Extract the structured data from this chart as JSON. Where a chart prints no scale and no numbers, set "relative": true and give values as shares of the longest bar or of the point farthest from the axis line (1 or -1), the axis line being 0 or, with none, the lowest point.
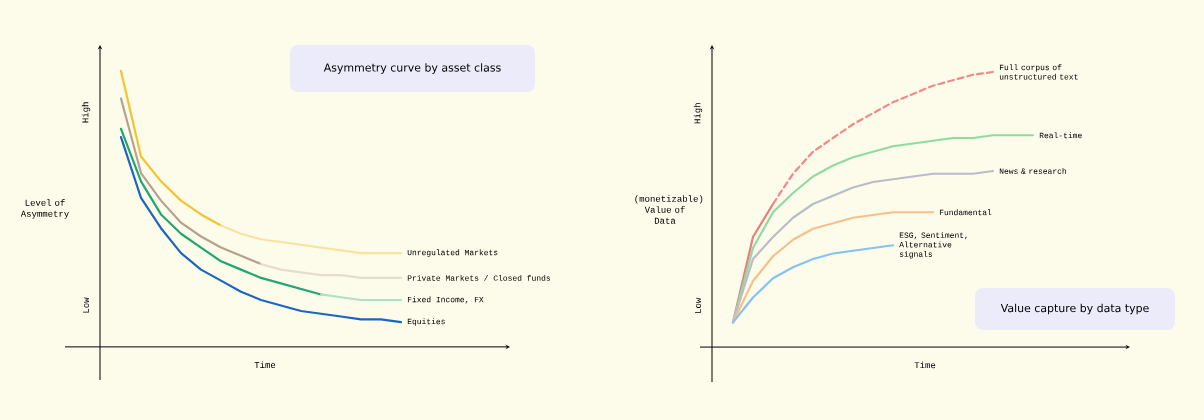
{
  "chart_data": [
    {
      "type": "line",
      "relative": true,
      "title": "Asymmetry curve by asset class",
      "xlabel": "Time",
      "ylabel": "Level of Asymmetry",
      "annotations": [
        "High",
        "Low"
      ],
      "categories": [
        null,
        null,
        null,
        null,
        null,
        null,
        null,
        null,
        null,
        null,
        null,
        null,
        null,
        null,
        null
      ],
      "series": [
        {
          "color": "#f4c430",
          "values": [
            1,
            0.69,
            0.6,
            0.53,
            0.48,
            0.44,
            null,
            null,
            null,
            null,
            null,
            null,
            null,
            null,
            null
          ]
        },
        {
          "name": "Unregulated Markets",
          "color": "#f8e4a0",
          "values": [
            null,
            null,
            null,
            null,
            null,
            0.44,
            0.41,
            0.39,
            0.38,
            0.37,
            0.36,
            0.35,
            0.34,
            0.34,
            0.34
          ]
        },
        {
          "color": "#b8a090",
          "values": [
            0.9,
            0.63,
            0.53,
            0.45,
            0.4,
            0.36,
            0.33,
            0.3,
            null,
            null,
            null,
            null,
            null,
            null,
            null
          ]
        },
        {
          "name": "Private Markets / Closed funds",
          "color": "#e8dccd",
          "values": [
            null,
            null,
            null,
            null,
            null,
            null,
            null,
            0.3,
            0.28,
            0.27,
            0.26,
            0.26,
            0.25,
            0.25,
            0.25
          ]
        },
        {
          "color": "#1fa672",
          "values": [
            0.79,
            0.6,
            0.48,
            0.41,
            0.36,
            0.31,
            0.28,
            0.25,
            0.23,
            0.21,
            0.19,
            null,
            null,
            null,
            null
          ]
        },
        {
          "name": "Fixed Income, FX",
          "color": "#b0e0c6",
          "values": [
            null,
            null,
            null,
            null,
            null,
            null,
            null,
            null,
            null,
            null,
            0.19,
            0.18,
            0.17,
            0.17,
            0.17
          ]
        },
        {
          "name": "Equities",
          "color": "#1a66c0",
          "values": [
            0.76,
            0.54,
            0.43,
            0.34,
            0.28,
            0.24,
            0.2,
            0.17,
            0.15,
            0.13,
            0.12,
            0.11,
            0.1,
            0.1,
            0.09
          ]
        }
      ]
    },
    {
      "type": "line",
      "relative": true,
      "title": "Value capture by data type",
      "xlabel": "Time",
      "ylabel": "(monetizable) Value of Data",
      "annotations": [
        "High",
        "Low"
      ],
      "categories": [
        null,
        null,
        null,
        null,
        null,
        null,
        null,
        null,
        null,
        null,
        null,
        null,
        null,
        null,
        null,
        null
      ],
      "series": [
        {
          "color": "#ee7b7b",
          "values": [
            0.09,
            0.4,
            0.52,
            null,
            null,
            null,
            null,
            null,
            null,
            null,
            null,
            null,
            null,
            null,
            null,
            null
          ]
        },
        {
          "name": "Full corpus of unstructured text",
          "color": "#f08a8a",
          "line_style": "dashed",
          "values": [
            null,
            null,
            0.52,
            0.63,
            0.71,
            0.76,
            0.81,
            0.85,
            0.89,
            0.92,
            0.95,
            0.97,
            0.99,
            1,
            null,
            null
          ]
        },
        {
          "name": "Real-time",
          "color": "#8fdba2",
          "values": [
            0.09,
            0.36,
            0.49,
            0.56,
            0.62,
            0.66,
            0.69,
            0.71,
            0.73,
            0.74,
            0.75,
            0.76,
            0.76,
            0.77,
            0.77,
            0.77
          ]
        },
        {
          "name": "News & research",
          "color": "#b9bdca",
          "values": [
            0.09,
            0.32,
            0.4,
            0.47,
            0.52,
            0.55,
            0.58,
            0.6,
            0.61,
            0.62,
            0.63,
            0.63,
            0.63,
            0.64,
            null,
            null
          ]
        },
        {
          "name": "Fundamental",
          "color": "#f6c08a",
          "values": [
            0.09,
            0.24,
            0.33,
            0.39,
            0.43,
            0.45,
            0.47,
            0.48,
            0.49,
            0.49,
            0.49,
            null,
            null,
            null,
            null,
            null
          ]
        },
        {
          "name": "ESG, Sentiment, Alternative signals",
          "color": "#86c2f2",
          "values": [
            0.09,
            0.18,
            0.25,
            0.29,
            0.32,
            0.34,
            0.35,
            0.36,
            0.37,
            null,
            null,
            null,
            null,
            null,
            null,
            null
          ]
        }
      ]
    }
  ]
}
